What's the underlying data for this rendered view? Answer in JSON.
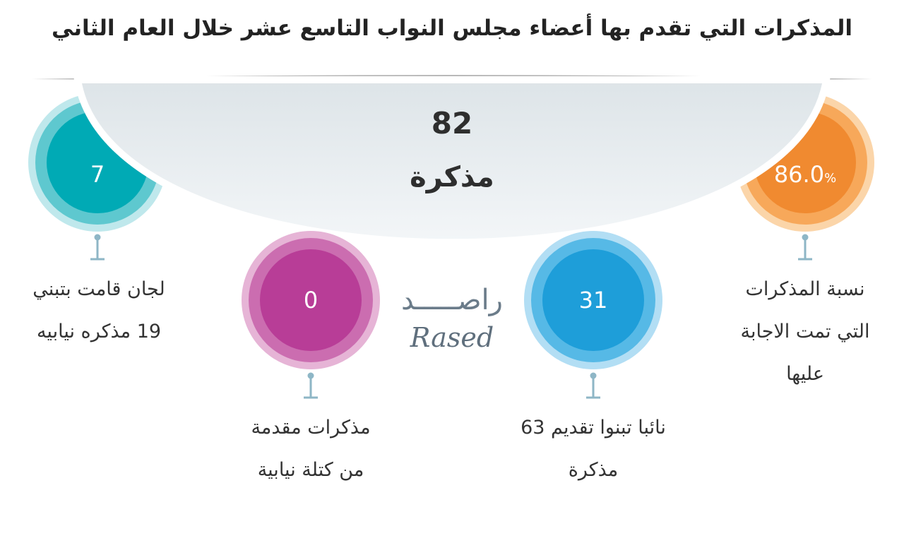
{
  "title": "المذكرات التي تقدم بها أعضاء مجلس النواب التاسع عشر خلال العام الثاني",
  "center": {
    "value": "82",
    "label": "مذكرة"
  },
  "circles": [
    {
      "id": "committees",
      "value": "7",
      "line1": "لجان قامت بتبني",
      "line2": "19 مذكره نيابيه",
      "color": "#00aab5"
    },
    {
      "id": "bloc",
      "value": "0",
      "line1": "مذكرات مقدمة",
      "line2": "من كتلة نيابية",
      "color": "#b83d97"
    },
    {
      "id": "deputies",
      "value": "31",
      "line1": "نائبا تبنوا تقديم 63",
      "line2": "مذكرة",
      "color": "#1e9ed9"
    },
    {
      "id": "answered",
      "value": "86.0",
      "pct": "%",
      "line1": "نسبة المذكرات",
      "line2": "التي تمت الاجابة",
      "line3": "عليها",
      "color": "#f08a30"
    }
  ],
  "logo": {
    "arabic": "راصـــــد",
    "english": "Rased"
  }
}
